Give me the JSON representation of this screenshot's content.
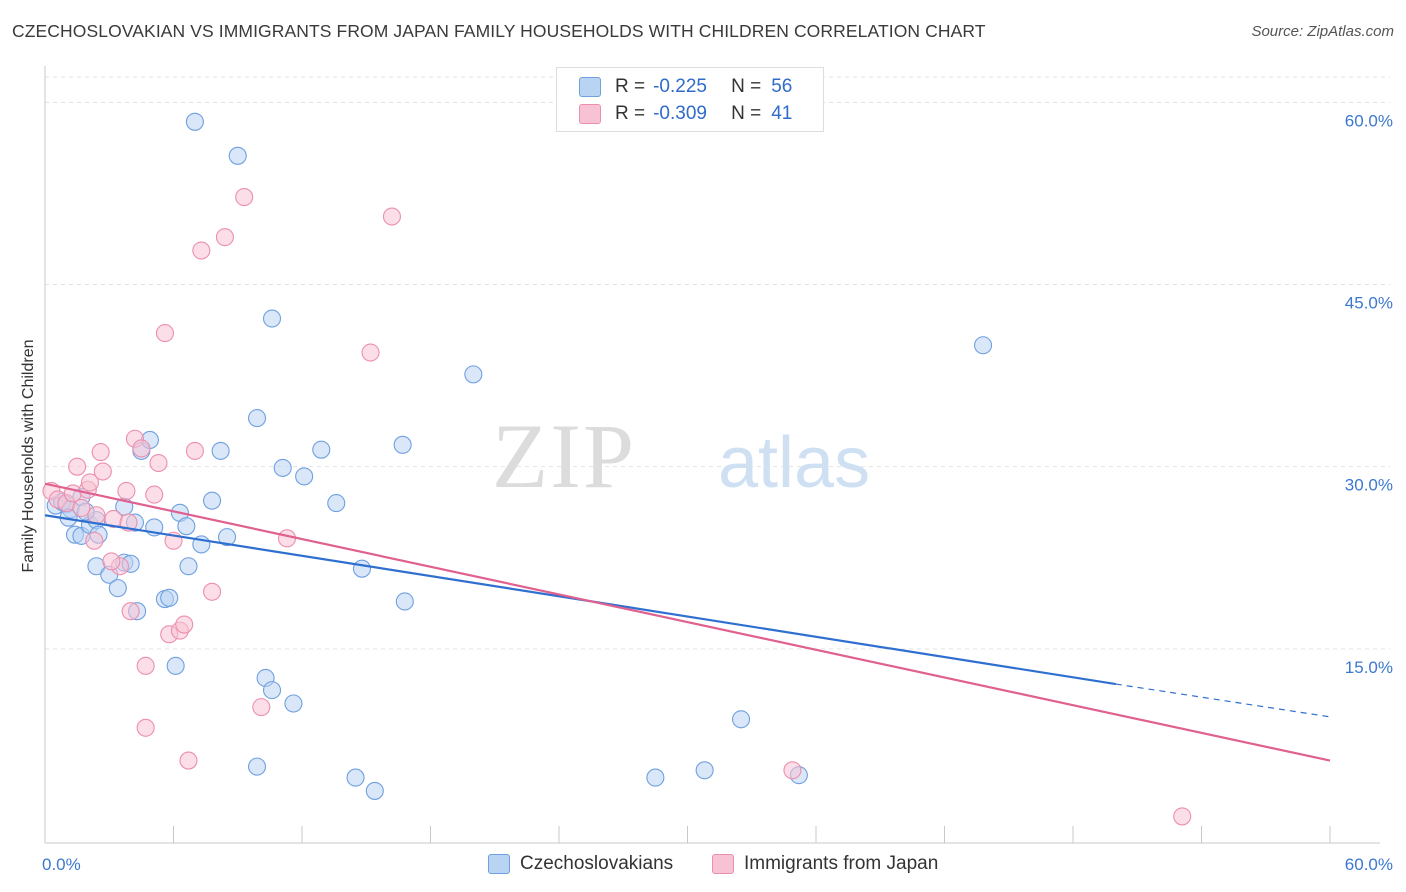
{
  "chart_data": {
    "type": "scatter",
    "title": "CZECHOSLOVAKIAN VS IMMIGRANTS FROM JAPAN FAMILY HOUSEHOLDS WITH CHILDREN CORRELATION CHART",
    "source": "Source: ZipAtlas.com",
    "xlabel": "",
    "ylabel": "Family Households with Children",
    "xlim": [
      0,
      60
    ],
    "ylim": [
      0,
      62.5
    ],
    "x_tick_labels": [
      "0.0%",
      "60.0%"
    ],
    "y_ticks": [
      15,
      30,
      45,
      60
    ],
    "y_tick_labels": [
      "15.0%",
      "30.0%",
      "45.0%",
      "60.0%"
    ],
    "watermark": "ZIPatlas",
    "legend": {
      "rows": [
        {
          "r_label": "R =",
          "r_value": "-0.225",
          "n_label": "N =",
          "n_value": "56"
        },
        {
          "r_label": "R =",
          "r_value": "-0.309",
          "n_label": "N =",
          "n_value": "41"
        }
      ]
    },
    "series": [
      {
        "name": "Czechoslovakians",
        "color": "#6fa0e0",
        "fill": "#b9d3f3",
        "line_color": "#2f6fd0",
        "trend": {
          "x0": 0,
          "y0": 26.0,
          "x1": 50,
          "y1": 12.1,
          "dash_x1": 60,
          "dash_y1": 9.4
        },
        "points": [
          [
            0.5,
            26.8
          ],
          [
            1.0,
            26.9
          ],
          [
            0.8,
            27.1
          ],
          [
            1.2,
            26.5
          ],
          [
            1.7,
            27.5
          ],
          [
            1.1,
            25.8
          ],
          [
            1.4,
            24.4
          ],
          [
            1.7,
            24.3
          ],
          [
            2.1,
            25.2
          ],
          [
            2.4,
            25.6
          ],
          [
            2.5,
            24.4
          ],
          [
            2.4,
            21.8
          ],
          [
            3.0,
            21.1
          ],
          [
            3.4,
            20.0
          ],
          [
            3.7,
            22.1
          ],
          [
            4.0,
            22.0
          ],
          [
            4.2,
            25.4
          ],
          [
            4.3,
            18.1
          ],
          [
            4.5,
            31.3
          ],
          [
            4.9,
            32.2
          ],
          [
            5.1,
            25.0
          ],
          [
            5.6,
            19.1
          ],
          [
            5.8,
            19.2
          ],
          [
            6.1,
            13.6
          ],
          [
            6.3,
            26.2
          ],
          [
            6.6,
            25.1
          ],
          [
            6.7,
            21.8
          ],
          [
            7.0,
            58.4
          ],
          [
            7.3,
            23.6
          ],
          [
            7.8,
            27.2
          ],
          [
            8.2,
            31.3
          ],
          [
            8.5,
            24.2
          ],
          [
            9.0,
            55.6
          ],
          [
            9.9,
            5.3
          ],
          [
            9.9,
            34.0
          ],
          [
            10.3,
            12.6
          ],
          [
            10.6,
            42.2
          ],
          [
            10.6,
            11.6
          ],
          [
            11.1,
            29.9
          ],
          [
            11.6,
            10.5
          ],
          [
            12.1,
            29.2
          ],
          [
            12.9,
            31.4
          ],
          [
            13.6,
            27.0
          ],
          [
            14.5,
            4.4
          ],
          [
            14.8,
            21.6
          ],
          [
            15.4,
            3.3
          ],
          [
            16.7,
            31.8
          ],
          [
            16.8,
            18.9
          ],
          [
            20.0,
            37.6
          ],
          [
            28.5,
            4.4
          ],
          [
            30.8,
            5.0
          ],
          [
            32.5,
            9.2
          ],
          [
            35.2,
            4.6
          ],
          [
            43.8,
            40.0
          ],
          [
            3.7,
            26.7
          ],
          [
            1.9,
            26.3
          ]
        ]
      },
      {
        "name": "Immigrants from Japan",
        "color": "#ec8fae",
        "fill": "#f7c3d4",
        "line_color": "#e0608f",
        "trend": {
          "x0": 0,
          "y0": 28.6,
          "x1": 60,
          "y1": 5.8
        },
        "points": [
          [
            0.3,
            28.0
          ],
          [
            0.6,
            27.3
          ],
          [
            1.0,
            27.0
          ],
          [
            1.3,
            27.8
          ],
          [
            1.5,
            30.0
          ],
          [
            1.7,
            26.6
          ],
          [
            2.0,
            28.1
          ],
          [
            2.1,
            28.7
          ],
          [
            2.4,
            26.0
          ],
          [
            2.6,
            31.2
          ],
          [
            2.7,
            29.6
          ],
          [
            3.2,
            25.7
          ],
          [
            3.5,
            21.8
          ],
          [
            3.8,
            28.0
          ],
          [
            3.9,
            25.4
          ],
          [
            4.0,
            18.1
          ],
          [
            4.2,
            32.3
          ],
          [
            4.5,
            31.5
          ],
          [
            4.7,
            8.5
          ],
          [
            4.7,
            13.6
          ],
          [
            5.1,
            27.7
          ],
          [
            5.3,
            30.3
          ],
          [
            5.6,
            41.0
          ],
          [
            5.8,
            16.2
          ],
          [
            6.0,
            23.9
          ],
          [
            6.3,
            16.5
          ],
          [
            6.5,
            17.0
          ],
          [
            6.7,
            5.8
          ],
          [
            7.0,
            31.3
          ],
          [
            7.3,
            47.8
          ],
          [
            7.8,
            19.7
          ],
          [
            8.4,
            48.9
          ],
          [
            9.3,
            52.2
          ],
          [
            10.1,
            10.2
          ],
          [
            11.3,
            24.1
          ],
          [
            15.2,
            39.4
          ],
          [
            16.2,
            50.6
          ],
          [
            34.9,
            5.0
          ],
          [
            53.1,
            1.2
          ],
          [
            3.1,
            22.2
          ],
          [
            2.3,
            23.9
          ]
        ]
      }
    ]
  }
}
